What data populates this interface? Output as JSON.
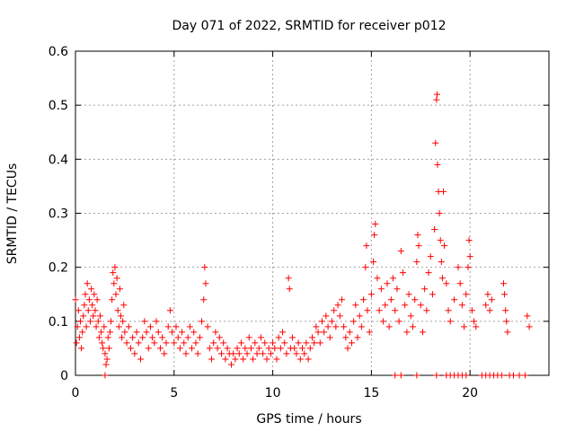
{
  "chart_data": {
    "type": "scatter",
    "title": "Day 071 of 2022, SRMTID for receiver p012",
    "xlabel": "GPS time / hours",
    "ylabel": "SRMTID / TECUs",
    "xlim": [
      0,
      24
    ],
    "ylim": [
      0,
      0.6
    ],
    "xticks": [
      0,
      5,
      10,
      15,
      20
    ],
    "xtick_labels": [
      "0",
      "5",
      "10",
      "15",
      "20"
    ],
    "yticks": [
      0,
      0.1,
      0.2,
      0.3,
      0.4,
      0.5,
      0.6
    ],
    "ytick_labels": [
      "0",
      "0.1",
      "0.2",
      "0.3",
      "0.4",
      "0.5",
      "0.6"
    ],
    "grid": true,
    "marker": "+",
    "color": "#ff0000",
    "points": [
      [
        0.0,
        0.14
      ],
      [
        0.05,
        0.06
      ],
      [
        0.1,
        0.09
      ],
      [
        0.15,
        0.12
      ],
      [
        0.2,
        0.07
      ],
      [
        0.25,
        0.1
      ],
      [
        0.3,
        0.05
      ],
      [
        0.35,
        0.08
      ],
      [
        0.4,
        0.11
      ],
      [
        0.45,
        0.13
      ],
      [
        0.5,
        0.15
      ],
      [
        0.55,
        0.09
      ],
      [
        0.6,
        0.17
      ],
      [
        0.65,
        0.12
      ],
      [
        0.7,
        0.14
      ],
      [
        0.75,
        0.1
      ],
      [
        0.8,
        0.16
      ],
      [
        0.85,
        0.13
      ],
      [
        0.9,
        0.11
      ],
      [
        0.95,
        0.15
      ],
      [
        1.0,
        0.12
      ],
      [
        1.05,
        0.09
      ],
      [
        1.1,
        0.14
      ],
      [
        1.15,
        0.1
      ],
      [
        1.2,
        0.07
      ],
      [
        1.25,
        0.11
      ],
      [
        1.3,
        0.08
      ],
      [
        1.35,
        0.06
      ],
      [
        1.4,
        0.05
      ],
      [
        1.45,
        0.09
      ],
      [
        1.5,
        0.04
      ],
      [
        1.55,
        0.02
      ],
      [
        1.6,
        0.03
      ],
      [
        1.65,
        0.07
      ],
      [
        1.7,
        0.05
      ],
      [
        1.75,
        0.08
      ],
      [
        1.8,
        0.1
      ],
      [
        1.85,
        0.14
      ],
      [
        1.9,
        0.19
      ],
      [
        1.95,
        0.17
      ],
      [
        2.0,
        0.2
      ],
      [
        2.05,
        0.15
      ],
      [
        2.1,
        0.18
      ],
      [
        2.15,
        0.12
      ],
      [
        2.2,
        0.09
      ],
      [
        2.25,
        0.16
      ],
      [
        2.3,
        0.11
      ],
      [
        2.35,
        0.07
      ],
      [
        2.4,
        0.1
      ],
      [
        2.45,
        0.13
      ],
      [
        2.5,
        0.08
      ],
      [
        2.6,
        0.06
      ],
      [
        2.7,
        0.09
      ],
      [
        2.8,
        0.05
      ],
      [
        2.9,
        0.07
      ],
      [
        3.0,
        0.04
      ],
      [
        3.1,
        0.08
      ],
      [
        3.2,
        0.06
      ],
      [
        3.3,
        0.03
      ],
      [
        3.4,
        0.07
      ],
      [
        3.5,
        0.1
      ],
      [
        3.6,
        0.08
      ],
      [
        3.7,
        0.05
      ],
      [
        3.8,
        0.09
      ],
      [
        3.9,
        0.07
      ],
      [
        4.0,
        0.06
      ],
      [
        4.1,
        0.1
      ],
      [
        4.2,
        0.08
      ],
      [
        4.3,
        0.05
      ],
      [
        4.4,
        0.07
      ],
      [
        4.5,
        0.04
      ],
      [
        4.6,
        0.06
      ],
      [
        4.7,
        0.09
      ],
      [
        4.8,
        0.12
      ],
      [
        4.9,
        0.08
      ],
      [
        5.0,
        0.06
      ],
      [
        5.1,
        0.09
      ],
      [
        5.2,
        0.07
      ],
      [
        5.3,
        0.05
      ],
      [
        5.4,
        0.08
      ],
      [
        5.5,
        0.06
      ],
      [
        5.6,
        0.04
      ],
      [
        5.7,
        0.07
      ],
      [
        5.8,
        0.09
      ],
      [
        5.9,
        0.05
      ],
      [
        6.0,
        0.08
      ],
      [
        6.1,
        0.06
      ],
      [
        6.2,
        0.04
      ],
      [
        6.3,
        0.07
      ],
      [
        6.4,
        0.1
      ],
      [
        6.5,
        0.14
      ],
      [
        6.55,
        0.2
      ],
      [
        6.6,
        0.17
      ],
      [
        6.7,
        0.09
      ],
      [
        6.8,
        0.05
      ],
      [
        6.9,
        0.03
      ],
      [
        7.0,
        0.06
      ],
      [
        7.1,
        0.08
      ],
      [
        7.2,
        0.05
      ],
      [
        7.3,
        0.07
      ],
      [
        7.4,
        0.04
      ],
      [
        7.5,
        0.06
      ],
      [
        7.6,
        0.03
      ],
      [
        7.7,
        0.05
      ],
      [
        7.8,
        0.04
      ],
      [
        7.9,
        0.02
      ],
      [
        8.0,
        0.04
      ],
      [
        8.1,
        0.03
      ],
      [
        8.2,
        0.05
      ],
      [
        8.3,
        0.04
      ],
      [
        8.4,
        0.06
      ],
      [
        8.5,
        0.03
      ],
      [
        8.6,
        0.05
      ],
      [
        8.7,
        0.04
      ],
      [
        8.8,
        0.07
      ],
      [
        8.9,
        0.05
      ],
      [
        9.0,
        0.03
      ],
      [
        9.1,
        0.06
      ],
      [
        9.2,
        0.04
      ],
      [
        9.3,
        0.05
      ],
      [
        9.4,
        0.07
      ],
      [
        9.5,
        0.04
      ],
      [
        9.6,
        0.06
      ],
      [
        9.7,
        0.03
      ],
      [
        9.8,
        0.05
      ],
      [
        9.9,
        0.04
      ],
      [
        10.0,
        0.06
      ],
      [
        10.1,
        0.05
      ],
      [
        10.2,
        0.03
      ],
      [
        10.3,
        0.07
      ],
      [
        10.4,
        0.05
      ],
      [
        10.5,
        0.08
      ],
      [
        10.6,
        0.06
      ],
      [
        10.7,
        0.04
      ],
      [
        10.8,
        0.18
      ],
      [
        10.85,
        0.16
      ],
      [
        10.9,
        0.05
      ],
      [
        11.0,
        0.07
      ],
      [
        11.1,
        0.05
      ],
      [
        11.2,
        0.04
      ],
      [
        11.3,
        0.06
      ],
      [
        11.4,
        0.03
      ],
      [
        11.5,
        0.05
      ],
      [
        11.6,
        0.04
      ],
      [
        11.7,
        0.06
      ],
      [
        11.8,
        0.03
      ],
      [
        11.9,
        0.05
      ],
      [
        12.0,
        0.07
      ],
      [
        12.1,
        0.06
      ],
      [
        12.2,
        0.09
      ],
      [
        12.3,
        0.08
      ],
      [
        12.4,
        0.06
      ],
      [
        12.5,
        0.1
      ],
      [
        12.6,
        0.08
      ],
      [
        12.7,
        0.11
      ],
      [
        12.8,
        0.09
      ],
      [
        12.9,
        0.07
      ],
      [
        13.0,
        0.1
      ],
      [
        13.1,
        0.12
      ],
      [
        13.2,
        0.09
      ],
      [
        13.3,
        0.13
      ],
      [
        13.4,
        0.11
      ],
      [
        13.5,
        0.14
      ],
      [
        13.6,
        0.09
      ],
      [
        13.7,
        0.07
      ],
      [
        13.8,
        0.05
      ],
      [
        13.9,
        0.08
      ],
      [
        14.0,
        0.06
      ],
      [
        14.1,
        0.1
      ],
      [
        14.2,
        0.13
      ],
      [
        14.3,
        0.07
      ],
      [
        14.4,
        0.11
      ],
      [
        14.5,
        0.09
      ],
      [
        14.6,
        0.14
      ],
      [
        14.7,
        0.2
      ],
      [
        14.75,
        0.24
      ],
      [
        14.8,
        0.12
      ],
      [
        14.9,
        0.08
      ],
      [
        15.0,
        0.15
      ],
      [
        15.1,
        0.21
      ],
      [
        15.15,
        0.26
      ],
      [
        15.2,
        0.28
      ],
      [
        15.3,
        0.18
      ],
      [
        15.4,
        0.12
      ],
      [
        15.5,
        0.16
      ],
      [
        15.6,
        0.1
      ],
      [
        15.7,
        0.13
      ],
      [
        15.8,
        0.17
      ],
      [
        15.9,
        0.09
      ],
      [
        16.0,
        0.14
      ],
      [
        16.1,
        0.18
      ],
      [
        16.2,
        0.12
      ],
      [
        16.3,
        0.16
      ],
      [
        16.4,
        0.1
      ],
      [
        16.5,
        0.23
      ],
      [
        16.6,
        0.19
      ],
      [
        16.7,
        0.13
      ],
      [
        16.8,
        0.08
      ],
      [
        16.9,
        0.15
      ],
      [
        17.0,
        0.11
      ],
      [
        17.1,
        0.09
      ],
      [
        17.2,
        0.14
      ],
      [
        17.3,
        0.21
      ],
      [
        17.35,
        0.26
      ],
      [
        17.4,
        0.24
      ],
      [
        17.5,
        0.13
      ],
      [
        17.6,
        0.08
      ],
      [
        17.7,
        0.16
      ],
      [
        17.8,
        0.12
      ],
      [
        17.9,
        0.19
      ],
      [
        18.0,
        0.22
      ],
      [
        18.1,
        0.15
      ],
      [
        18.2,
        0.27
      ],
      [
        18.25,
        0.43
      ],
      [
        18.3,
        0.51
      ],
      [
        18.33,
        0.52
      ],
      [
        18.35,
        0.39
      ],
      [
        18.4,
        0.34
      ],
      [
        18.45,
        0.3
      ],
      [
        18.5,
        0.25
      ],
      [
        18.55,
        0.21
      ],
      [
        18.6,
        0.18
      ],
      [
        18.65,
        0.34
      ],
      [
        18.7,
        0.24
      ],
      [
        18.8,
        0.17
      ],
      [
        18.9,
        0.12
      ],
      [
        19.0,
        0.1
      ],
      [
        19.2,
        0.14
      ],
      [
        19.4,
        0.2
      ],
      [
        19.5,
        0.17
      ],
      [
        19.6,
        0.13
      ],
      [
        19.7,
        0.09
      ],
      [
        19.8,
        0.15
      ],
      [
        19.9,
        0.2
      ],
      [
        19.95,
        0.25
      ],
      [
        20.0,
        0.22
      ],
      [
        20.1,
        0.12
      ],
      [
        20.2,
        0.1
      ],
      [
        20.3,
        0.09
      ],
      [
        20.8,
        0.13
      ],
      [
        20.9,
        0.15
      ],
      [
        21.0,
        0.12
      ],
      [
        21.1,
        0.14
      ],
      [
        21.7,
        0.17
      ],
      [
        21.75,
        0.15
      ],
      [
        21.8,
        0.12
      ],
      [
        21.85,
        0.1
      ],
      [
        21.9,
        0.08
      ],
      [
        22.9,
        0.11
      ],
      [
        23.0,
        0.09
      ]
    ],
    "zero_points": [
      1.5,
      16.2,
      16.5,
      17.3,
      18.3,
      18.8,
      19.0,
      19.2,
      19.4,
      19.6,
      19.8,
      20.6,
      20.8,
      21.0,
      21.2,
      21.4,
      21.6,
      22.0,
      22.2,
      22.5,
      22.8
    ]
  }
}
